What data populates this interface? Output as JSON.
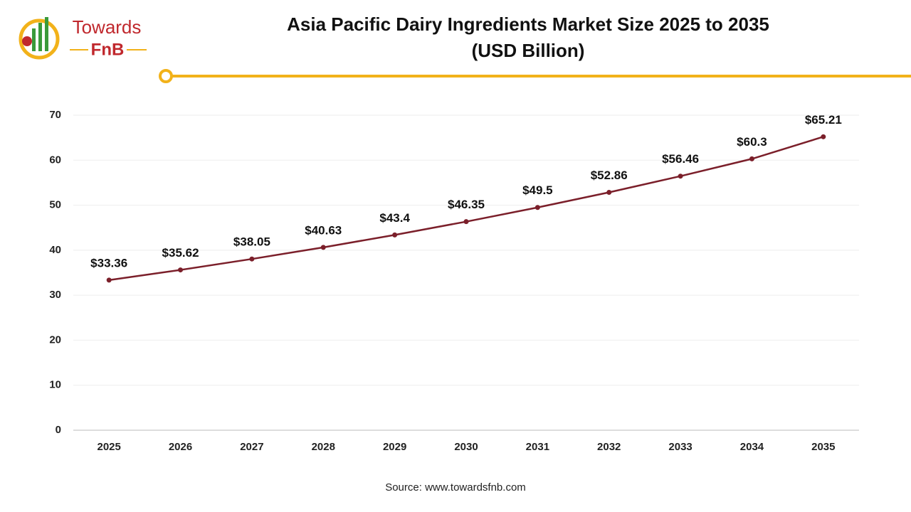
{
  "logo": {
    "line1": "Towards",
    "line2": "FnB"
  },
  "chart_data": {
    "type": "line",
    "title": "Asia Pacific Dairy Ingredients Market Size 2025 to 2035",
    "subtitle": "(USD Billion)",
    "source": "Source: www.towardsfnb.com",
    "categories": [
      "2025",
      "2026",
      "2027",
      "2028",
      "2029",
      "2030",
      "2031",
      "2032",
      "2033",
      "2034",
      "2035"
    ],
    "values": [
      33.36,
      35.62,
      38.05,
      40.63,
      43.4,
      46.35,
      49.5,
      52.86,
      56.46,
      60.3,
      65.21
    ],
    "value_labels": [
      "$33.36",
      "$35.62",
      "$38.05",
      "$40.63",
      "$43.4",
      "$46.35",
      "$49.5",
      "$52.86",
      "$56.46",
      "$60.3",
      "$65.21"
    ],
    "color": "#7b1f2a",
    "ylim": [
      0,
      70
    ],
    "yticks": [
      0,
      10,
      20,
      30,
      40,
      50,
      60,
      70
    ],
    "grid": true
  }
}
